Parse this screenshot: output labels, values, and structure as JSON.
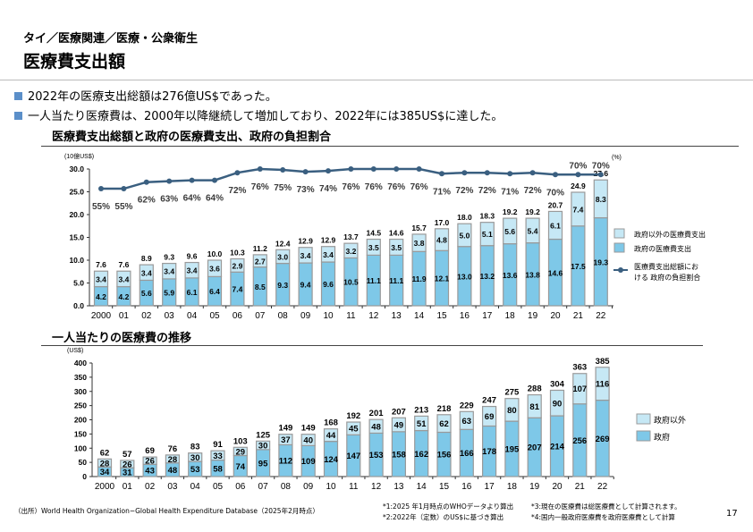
{
  "header": {
    "breadcrumb": "タイ／医療関連／医療・公衆衛生",
    "title": "医療費支出額"
  },
  "bullets": [
    "2022年の医療支出総額は276億US$であった。",
    "一人当たり医療費は、2000年以降継続して増加しており、2022年には385US$に達した。"
  ],
  "colors": {
    "gov": "#7ec8e8",
    "nongov": "#c6e8f5",
    "border": "#9a9a9a",
    "line": "#3a5f80",
    "bullet": "#5b8fc9"
  },
  "chart_data": [
    {
      "type": "bar",
      "stacked": true,
      "title": "医療費支出総額と政府の医療費支出、政府の負担割合",
      "ylabel": "(10億US$)",
      "y2label": "(%)",
      "ylim": [
        0,
        30
      ],
      "yticks": [
        "0.0",
        "5.0",
        "10.0",
        "15.0",
        "20.0",
        "25.0",
        "30.0"
      ],
      "categories": [
        "2000",
        "01",
        "02",
        "03",
        "04",
        "05",
        "06",
        "07",
        "08",
        "09",
        "10",
        "11",
        "12",
        "13",
        "14",
        "15",
        "16",
        "17",
        "18",
        "19",
        "20",
        "21",
        "22"
      ],
      "series": [
        {
          "name": "政府の医療費支出",
          "values": [
            4.2,
            4.2,
            5.6,
            5.9,
            6.1,
            6.4,
            7.4,
            8.5,
            9.3,
            9.4,
            9.6,
            10.5,
            11.1,
            11.1,
            11.9,
            12.1,
            13.0,
            13.2,
            13.6,
            13.8,
            14.6,
            17.5,
            19.3
          ]
        },
        {
          "name": "政府以外の医療費支出",
          "values": [
            3.4,
            3.4,
            3.4,
            3.4,
            3.4,
            3.6,
            2.9,
            2.7,
            3.0,
            3.4,
            3.4,
            3.2,
            3.5,
            3.5,
            3.8,
            4.8,
            5.0,
            5.1,
            5.6,
            5.4,
            6.1,
            7.4,
            8.3
          ]
        }
      ],
      "totals": [
        "7.6",
        "7.6",
        "8.9",
        "9.3",
        "9.6",
        "10.0",
        "10.3",
        "11.2",
        "12.4",
        "12.9",
        "12.9",
        "13.7",
        "14.5",
        "14.6",
        "15.7",
        "17.0",
        "18.0",
        "18.3",
        "19.2",
        "19.2",
        "20.7",
        "24.9",
        "27.6"
      ],
      "line": {
        "name": "医療費支出総額における 政府の負担割合",
        "values": [
          55,
          55,
          62,
          63,
          64,
          64,
          72,
          76,
          75,
          73,
          74,
          76,
          76,
          76,
          76,
          71,
          72,
          72,
          71,
          72,
          70,
          70,
          70
        ]
      },
      "legend": [
        "政府以外の医療費支出",
        "政府の医療費支出",
        "医療費支出総額にお",
        "ける 政府の負担割合"
      ],
      "legend_position": "right"
    },
    {
      "type": "bar",
      "stacked": true,
      "title": "一人当たりの医療費の推移",
      "ylabel": "(US$)",
      "ylim": [
        0,
        400
      ],
      "yticks": [
        "0",
        "50",
        "100",
        "150",
        "200",
        "250",
        "300",
        "350",
        "400"
      ],
      "categories": [
        "2000",
        "01",
        "02",
        "03",
        "04",
        "05",
        "06",
        "07",
        "08",
        "09",
        "10",
        "11",
        "12",
        "13",
        "14",
        "15",
        "16",
        "17",
        "18",
        "19",
        "20",
        "21",
        "22"
      ],
      "series": [
        {
          "name": "政府",
          "values": [
            34,
            31,
            43,
            48,
            53,
            58,
            74,
            95,
            112,
            109,
            124,
            147,
            153,
            158,
            162,
            156,
            166,
            178,
            195,
            207,
            214,
            256,
            269
          ]
        },
        {
          "name": "政府以外",
          "values": [
            28,
            26,
            26,
            28,
            30,
            33,
            29,
            30,
            37,
            40,
            44,
            45,
            48,
            49,
            51,
            62,
            63,
            69,
            80,
            81,
            90,
            107,
            116
          ]
        }
      ],
      "totals": [
        "62",
        "57",
        "69",
        "76",
        "83",
        "91",
        "103",
        "125",
        "149",
        "149",
        "168",
        "192",
        "201",
        "207",
        "213",
        "218",
        "229",
        "247",
        "275",
        "288",
        "304",
        "363",
        "385"
      ],
      "legend": [
        "政府以外",
        "政府"
      ],
      "legend_position": "right"
    }
  ],
  "footer": {
    "source": "（出所）World Health Organization−Global Health Expenditure Database（2025年2月時点）",
    "notes": [
      "*1:2025 年1月時点のWHOデータより算出",
      "*2:2022年（定数）のUS$に基づき算出",
      "*3:現在の医療費は総医療費として計算されます。",
      "*4:国内一般政府医療費を政府医療費として計算"
    ],
    "page": "17"
  }
}
